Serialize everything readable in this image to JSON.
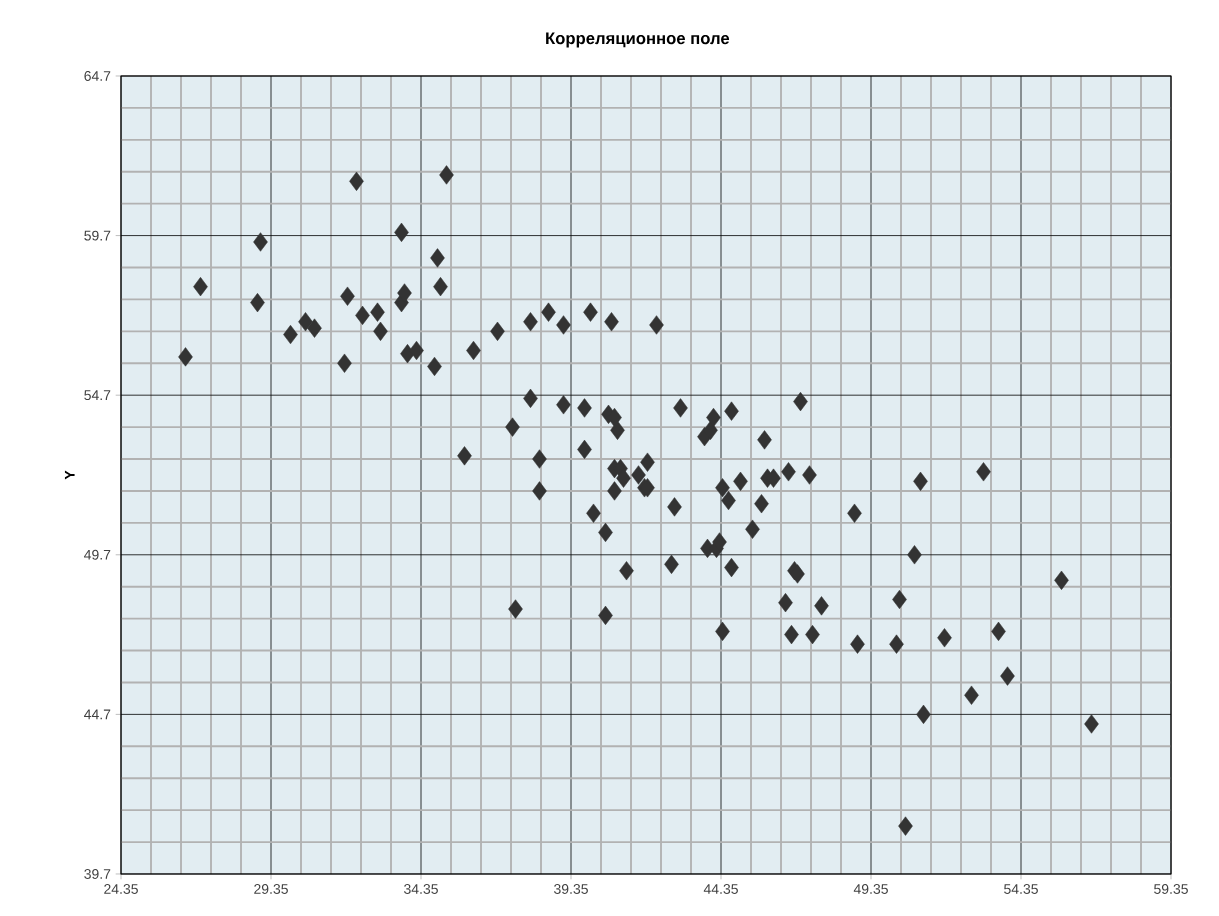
{
  "chart_data": {
    "type": "scatter",
    "title": "Корреляционное поле",
    "ylabel": "Y",
    "xlim": [
      24.35,
      59.35
    ],
    "ylim": [
      39.7,
      64.7
    ],
    "xticks": [
      24.35,
      29.35,
      34.35,
      39.35,
      44.35,
      49.35,
      54.35,
      59.35
    ],
    "yticks": [
      39.7,
      44.7,
      49.7,
      54.7,
      59.7,
      64.7
    ],
    "grid": true,
    "marker": "diamond",
    "series": [
      {
        "color": "#333333",
        "x": [
          26.5,
          27.0,
          29.0,
          28.9,
          30.0,
          30.5,
          30.8,
          31.9,
          31.8,
          32.2,
          32.4,
          32.9,
          33.0,
          33.7,
          33.7,
          33.8,
          33.9,
          34.2,
          34.8,
          34.9,
          35.0,
          35.2,
          35.8,
          36.1,
          36.9,
          37.4,
          37.5,
          38.0,
          38.0,
          38.3,
          38.3,
          38.6,
          39.1,
          39.1,
          39.8,
          39.8,
          40.0,
          40.1,
          40.5,
          40.5,
          40.6,
          40.7,
          40.8,
          40.8,
          40.8,
          40.9,
          41.0,
          41.1,
          41.2,
          41.6,
          41.8,
          41.9,
          41.9,
          42.2,
          42.7,
          42.8,
          43.0,
          43.8,
          43.9,
          44.0,
          44.1,
          44.2,
          44.3,
          44.4,
          44.4,
          44.6,
          44.7,
          44.7,
          45.0,
          45.4,
          45.7,
          45.8,
          45.9,
          46.1,
          46.5,
          46.7,
          46.6,
          46.8,
          46.9,
          47.0,
          47.3,
          47.4,
          47.7,
          48.9,
          48.8,
          50.2,
          50.3,
          50.5,
          50.8,
          51.0,
          51.1,
          51.8,
          52.7,
          53.1,
          53.6,
          53.9,
          55.7,
          56.7
        ],
        "values": [
          55.9,
          58.1,
          59.5,
          57.6,
          56.6,
          57.0,
          56.8,
          57.8,
          55.7,
          61.4,
          57.2,
          57.3,
          56.7,
          59.8,
          57.6,
          57.9,
          56.0,
          56.1,
          55.6,
          59.0,
          58.1,
          61.6,
          52.8,
          56.1,
          56.7,
          53.7,
          48.0,
          54.6,
          57.0,
          52.7,
          51.7,
          57.3,
          54.4,
          56.9,
          54.3,
          53.0,
          57.3,
          51.0,
          50.4,
          47.8,
          54.1,
          57.0,
          52.4,
          54.0,
          51.7,
          53.6,
          52.4,
          52.1,
          49.2,
          52.2,
          51.8,
          51.8,
          52.6,
          56.9,
          49.4,
          51.2,
          54.3,
          53.4,
          49.9,
          53.6,
          54.0,
          49.9,
          50.1,
          51.8,
          47.3,
          51.4,
          54.2,
          49.3,
          52.0,
          50.5,
          51.3,
          53.3,
          52.1,
          52.1,
          48.2,
          47.2,
          52.3,
          49.2,
          49.1,
          54.5,
          52.2,
          47.2,
          48.1,
          46.9,
          51.0,
          46.9,
          48.3,
          41.2,
          49.7,
          52.0,
          44.7,
          47.1,
          45.3,
          52.3,
          47.3,
          45.9,
          48.9,
          44.4
        ]
      }
    ]
  }
}
